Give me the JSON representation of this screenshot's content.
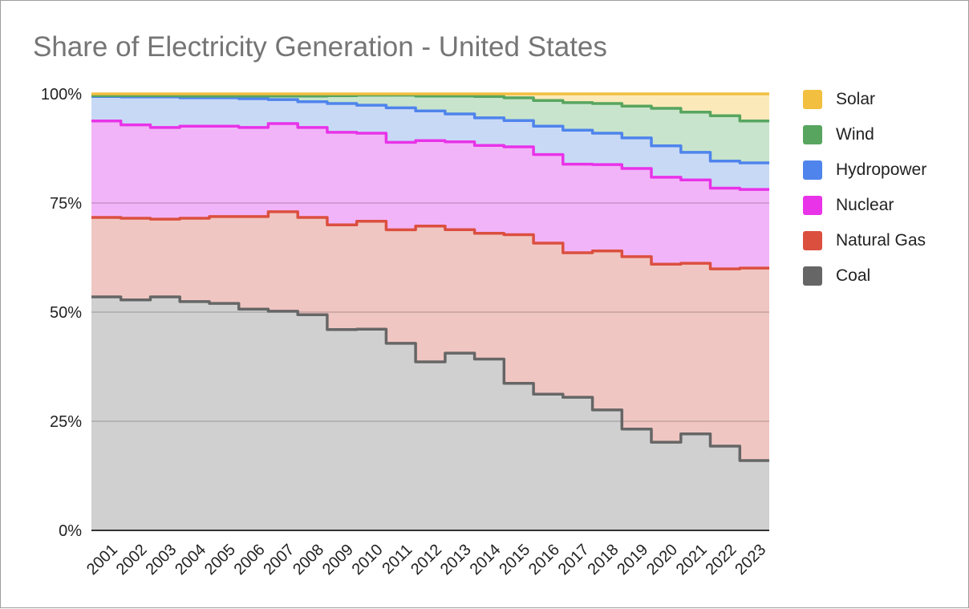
{
  "chart_data": {
    "type": "area",
    "subtype": "stacked-percent-stepped",
    "title": "Share of Electricity Generation - United States",
    "xlabel": "",
    "ylabel": "",
    "ylim": [
      0,
      100
    ],
    "y_ticks": [
      "0%",
      "25%",
      "50%",
      "75%",
      "100%"
    ],
    "y_tick_values": [
      0,
      25,
      50,
      75,
      100
    ],
    "grid": true,
    "legend_position": "right",
    "categories": [
      "2001",
      "2002",
      "2003",
      "2004",
      "2005",
      "2006",
      "2007",
      "2008",
      "2009",
      "2010",
      "2011",
      "2012",
      "2013",
      "2014",
      "2015",
      "2016",
      "2017",
      "2018",
      "2019",
      "2020",
      "2021",
      "2022",
      "2023"
    ],
    "cumulative_note": "series values are individual shares (%) stacked bottom-to-top: Coal, Natural Gas, Nuclear, Hydropower, Wind, Solar",
    "series": [
      {
        "name": "Coal",
        "color": "#666666",
        "fill": "#d0d0d0",
        "values": [
          53.5,
          52.8,
          53.5,
          52.4,
          52.0,
          50.7,
          50.2,
          49.4,
          46.0,
          46.1,
          42.8,
          38.6,
          40.6,
          39.2,
          33.6,
          31.2,
          30.5,
          27.6,
          23.2,
          20.2,
          22.1,
          19.3,
          16.0
        ]
      },
      {
        "name": "Natural Gas",
        "color": "#db4f3f",
        "fill": "#f0c6c2",
        "values": [
          18.2,
          18.7,
          17.8,
          19.1,
          19.9,
          21.2,
          22.8,
          22.3,
          24.0,
          24.7,
          26.0,
          31.1,
          28.3,
          28.8,
          34.0,
          34.6,
          33.1,
          36.4,
          39.5,
          40.8,
          39.1,
          40.6,
          44.1
        ]
      },
      {
        "name": "Nuclear",
        "color": "#e833e8",
        "fill": "#f2b4f8",
        "values": [
          22.1,
          21.4,
          21.0,
          21.1,
          20.7,
          20.4,
          20.2,
          20.6,
          21.2,
          20.2,
          20.0,
          19.6,
          20.1,
          20.1,
          20.1,
          20.3,
          20.3,
          19.8,
          20.2,
          19.9,
          19.1,
          18.5,
          18.0
        ]
      },
      {
        "name": "Hydropower",
        "color": "#4f84ec",
        "fill": "#c8d9f6",
        "values": [
          5.6,
          6.4,
          7.0,
          6.5,
          6.5,
          6.6,
          5.5,
          5.9,
          6.6,
          6.4,
          7.9,
          6.8,
          6.4,
          6.3,
          6.0,
          6.5,
          7.8,
          7.2,
          7.0,
          7.2,
          6.3,
          6.2,
          6.1
        ]
      },
      {
        "name": "Wind",
        "color": "#57a55f",
        "fill": "#c8e4cc",
        "values": [
          0.2,
          0.3,
          0.3,
          0.4,
          0.4,
          0.6,
          0.8,
          1.3,
          1.8,
          2.3,
          2.9,
          3.4,
          4.1,
          4.9,
          5.2,
          5.9,
          6.3,
          6.8,
          7.3,
          8.6,
          9.2,
          10.4,
          9.6
        ]
      },
      {
        "name": "Solar",
        "color": "#f2bf40",
        "fill": "#fbe9ba",
        "values": [
          0.4,
          0.4,
          0.4,
          0.5,
          0.5,
          0.5,
          0.5,
          0.5,
          0.4,
          0.3,
          0.3,
          0.5,
          0.5,
          0.6,
          0.9,
          1.5,
          2.0,
          2.2,
          2.8,
          3.3,
          4.2,
          5.0,
          6.2
        ]
      }
    ]
  },
  "legend": [
    {
      "label": "Solar",
      "color": "#f2bf40"
    },
    {
      "label": "Wind",
      "color": "#57a55f"
    },
    {
      "label": "Hydropower",
      "color": "#4f84ec"
    },
    {
      "label": "Nuclear",
      "color": "#e833e8"
    },
    {
      "label": "Natural Gas",
      "color": "#db4f3f"
    },
    {
      "label": "Coal",
      "color": "#666666"
    }
  ]
}
